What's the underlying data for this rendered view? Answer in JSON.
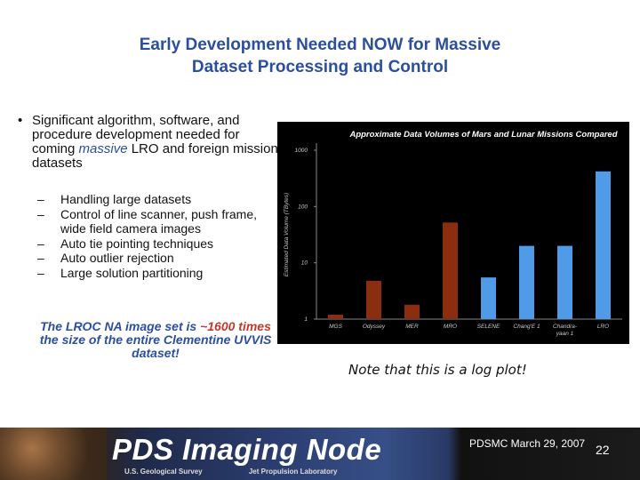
{
  "slide": {
    "title_line1": "Early Development Needed NOW for Massive",
    "title_line2": "Dataset Processing and Control",
    "bullet_main_before": "Significant algorithm, software, and procedure development needed for coming ",
    "bullet_main_em": "massive",
    "bullet_main_after": " LRO and foreign mission datasets",
    "sub_bullets": [
      "Handling large datasets",
      "Control of line scanner, push frame, wide field camera images",
      "Auto tie pointing techniques",
      "Auto outlier rejection",
      "Large solution partitioning"
    ],
    "lroc_note_a": "The LROC NA image set is ",
    "lroc_note_b": "~1600 times",
    "lroc_note_c": " the size of the entire Clementine UVVIS dataset!",
    "plot_note": "Note that this is a log plot!"
  },
  "footer": {
    "title": "PDS Imaging Node",
    "org1": "U.S. Geological Survey",
    "org2": "Jet Propulsion Laboratory",
    "date": "PDSMC March 29, 2007",
    "page": "22"
  },
  "chart_data": {
    "type": "bar",
    "title": "Approximate Data Volumes of Mars and Lunar Missions Compared",
    "ylabel": "Estimated Data Volume (TBytes)",
    "yscale": "log",
    "ylim": [
      1,
      1000
    ],
    "yticks": [
      1,
      10,
      100,
      1000
    ],
    "grid": false,
    "categories": [
      "MGS",
      "Odyssey",
      "MER",
      "MRO",
      "SELENE",
      "Chang'E 1",
      "Chandrayaan 1",
      "LRO"
    ],
    "category_labels": [
      [
        "MGS"
      ],
      [
        "Odyssey"
      ],
      [
        "MER"
      ],
      [
        "MRO"
      ],
      [
        "SELENE"
      ],
      [
        "Chang'E 1"
      ],
      [
        "Chandra-",
        "yaan 1"
      ],
      [
        "LRO"
      ]
    ],
    "values": [
      1.2,
      4.8,
      1.8,
      52,
      5.5,
      20,
      20,
      420
    ],
    "colors": [
      "#8b2e0f",
      "#8b2e0f",
      "#8b2e0f",
      "#8b2e0f",
      "#4f9be8",
      "#4f9be8",
      "#4f9be8",
      "#4f9be8"
    ],
    "background": "#000000"
  }
}
